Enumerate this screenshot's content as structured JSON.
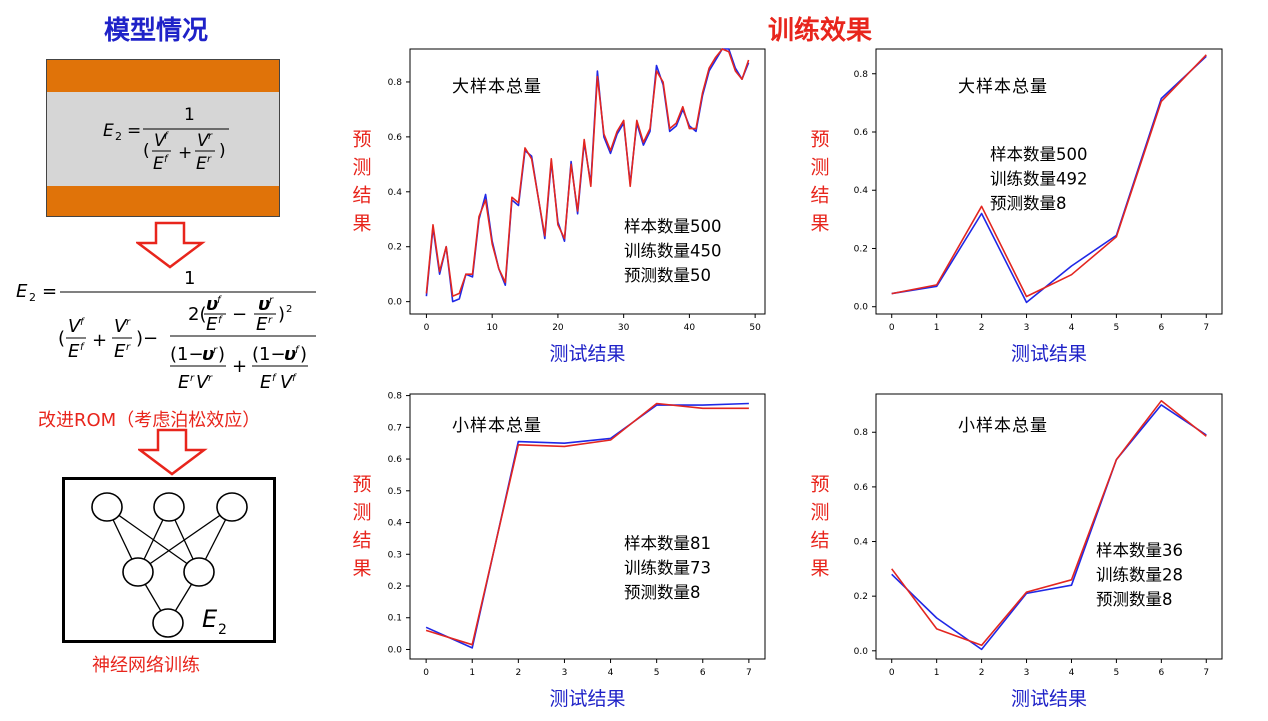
{
  "left": {
    "title": "模型情况",
    "box_formula": {
      "lhs": "E",
      "sub": "2",
      "num": "1"
    },
    "big_formula_num": "1",
    "caption1": "改进ROM（考虑泊松效应）",
    "caption2": "神经网络训练",
    "nn_output_label": "E",
    "nn_output_sub": "2"
  },
  "right_title": "训练效果",
  "colors": {
    "title_blue": "#1f22c8",
    "title_red": "#e8251c",
    "orange": "#e07309",
    "gray": "#d6d6d6",
    "series_blue": "#2028e6",
    "series_red": "#e32620"
  },
  "chart_data": [
    {
      "type": "line",
      "annotation": "大样本总量",
      "info": [
        "样本数量500",
        "训练数量450",
        "预测数量50"
      ],
      "xlabel": "测试结果",
      "ylabel": "预测结果",
      "x": [
        0,
        1,
        2,
        3,
        4,
        5,
        6,
        7,
        8,
        9,
        10,
        11,
        12,
        13,
        14,
        15,
        16,
        17,
        18,
        19,
        20,
        21,
        22,
        23,
        24,
        25,
        26,
        27,
        28,
        29,
        30,
        31,
        32,
        33,
        34,
        35,
        36,
        37,
        38,
        39,
        40,
        41,
        42,
        43,
        44,
        45,
        46,
        47,
        48,
        49
      ],
      "xlim": [
        -2.5,
        51.5
      ],
      "ylim": [
        -0.045,
        0.92
      ],
      "xticks": [
        0,
        10,
        20,
        30,
        40,
        50
      ],
      "yticks": [
        0.0,
        0.2,
        0.4,
        0.6,
        0.8
      ],
      "series": [
        {
          "color": "#2028e6",
          "values": [
            0.02,
            0.27,
            0.1,
            0.2,
            0.0,
            0.01,
            0.1,
            0.09,
            0.3,
            0.39,
            0.22,
            0.12,
            0.06,
            0.37,
            0.35,
            0.55,
            0.53,
            0.38,
            0.23,
            0.51,
            0.29,
            0.22,
            0.51,
            0.32,
            0.58,
            0.43,
            0.84,
            0.6,
            0.54,
            0.61,
            0.65,
            0.43,
            0.65,
            0.57,
            0.62,
            0.86,
            0.79,
            0.62,
            0.64,
            0.7,
            0.64,
            0.62,
            0.75,
            0.84,
            0.88,
            0.92,
            0.92,
            0.85,
            0.81,
            0.87
          ]
        },
        {
          "color": "#e32620",
          "values": [
            0.03,
            0.28,
            0.11,
            0.2,
            0.02,
            0.03,
            0.1,
            0.1,
            0.31,
            0.37,
            0.21,
            0.12,
            0.07,
            0.38,
            0.36,
            0.56,
            0.52,
            0.38,
            0.24,
            0.52,
            0.28,
            0.23,
            0.5,
            0.33,
            0.59,
            0.42,
            0.82,
            0.61,
            0.55,
            0.62,
            0.66,
            0.42,
            0.66,
            0.58,
            0.63,
            0.84,
            0.8,
            0.63,
            0.65,
            0.71,
            0.63,
            0.63,
            0.76,
            0.85,
            0.89,
            0.92,
            0.91,
            0.84,
            0.81,
            0.88
          ]
        }
      ]
    },
    {
      "type": "line",
      "annotation": "大样本总量",
      "info": [
        "样本数量500",
        "训练数量492",
        "预测数量8"
      ],
      "xlabel": "测试结果",
      "ylabel": "预测结果",
      "x": [
        0,
        1,
        2,
        3,
        4,
        5,
        6,
        7
      ],
      "xlim": [
        -0.35,
        7.35
      ],
      "ylim": [
        -0.025,
        0.885
      ],
      "xticks": [
        0,
        1,
        2,
        3,
        4,
        5,
        6,
        7
      ],
      "yticks": [
        0.0,
        0.2,
        0.4,
        0.6,
        0.8
      ],
      "series": [
        {
          "color": "#2028e6",
          "values": [
            0.045,
            0.07,
            0.32,
            0.015,
            0.14,
            0.245,
            0.715,
            0.86
          ]
        },
        {
          "color": "#e32620",
          "values": [
            0.045,
            0.075,
            0.345,
            0.035,
            0.11,
            0.24,
            0.705,
            0.865
          ]
        }
      ]
    },
    {
      "type": "line",
      "annotation": "小样本总量",
      "info": [
        "样本数量81",
        "训练数量73",
        "预测数量8"
      ],
      "xlabel": "测试结果",
      "ylabel": "预测结果",
      "x": [
        0,
        1,
        2,
        3,
        4,
        5,
        6,
        7
      ],
      "xlim": [
        -0.35,
        7.35
      ],
      "ylim": [
        -0.03,
        0.805
      ],
      "xticks": [
        0,
        1,
        2,
        3,
        4,
        5,
        6,
        7
      ],
      "yticks": [
        0.0,
        0.1,
        0.2,
        0.3,
        0.4,
        0.5,
        0.6,
        0.7,
        0.8
      ],
      "series": [
        {
          "color": "#2028e6",
          "values": [
            0.07,
            0.005,
            0.655,
            0.65,
            0.665,
            0.77,
            0.77,
            0.775
          ]
        },
        {
          "color": "#e32620",
          "values": [
            0.06,
            0.015,
            0.645,
            0.64,
            0.66,
            0.775,
            0.76,
            0.76
          ]
        }
      ]
    },
    {
      "type": "line",
      "annotation": "小样本总量",
      "info": [
        "样本数量36",
        "训练数量28",
        "预测数量8"
      ],
      "xlabel": "测试结果",
      "ylabel": "预测结果",
      "x": [
        0,
        1,
        2,
        3,
        4,
        5,
        6,
        7
      ],
      "xlim": [
        -0.35,
        7.35
      ],
      "ylim": [
        -0.03,
        0.94
      ],
      "xticks": [
        0,
        1,
        2,
        3,
        4,
        5,
        6,
        7
      ],
      "yticks": [
        0.0,
        0.2,
        0.4,
        0.6,
        0.8
      ],
      "series": [
        {
          "color": "#2028e6",
          "values": [
            0.28,
            0.12,
            0.005,
            0.21,
            0.24,
            0.7,
            0.9,
            0.79
          ]
        },
        {
          "color": "#e32620",
          "values": [
            0.3,
            0.08,
            0.02,
            0.215,
            0.26,
            0.7,
            0.915,
            0.785
          ]
        }
      ]
    }
  ]
}
